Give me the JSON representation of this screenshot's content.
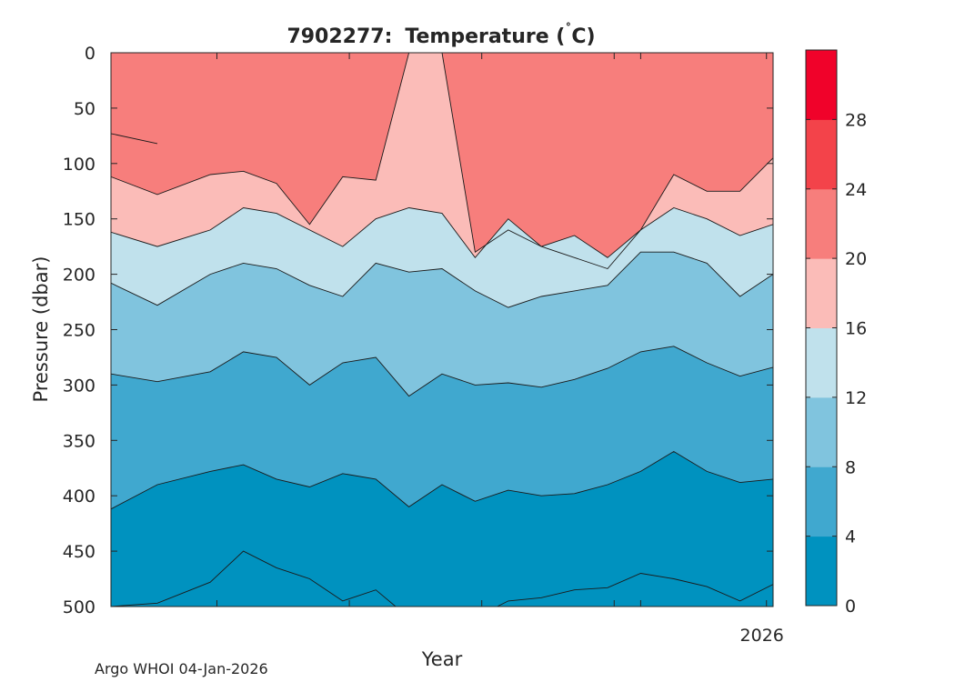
{
  "chart_data": {
    "type": "contour",
    "title_id": "7902277:",
    "title_var": "Temperature (",
    "title_degree": "˚",
    "title_unit": "C)",
    "xlabel": "Year",
    "ylabel": "Pressure (dbar)",
    "ylim": [
      0,
      500
    ],
    "y_ticks": [
      0,
      50,
      100,
      150,
      200,
      250,
      300,
      350,
      400,
      450,
      500
    ],
    "x_ticks": [
      "",
      "",
      "",
      "",
      "",
      "2026"
    ],
    "colorbar": {
      "levels": [
        0,
        4,
        8,
        12,
        16,
        20,
        24,
        28,
        32
      ],
      "tick_labels": [
        "0",
        "4",
        "8",
        "12",
        "16",
        "20",
        "24",
        "28"
      ],
      "colors": [
        "#0092bf",
        "#40a8cf",
        "#80c4de",
        "#c0e1ec",
        "#fbbcb8",
        "#f77e7c",
        "#f3434a",
        "#f0022a"
      ]
    },
    "x_profile_fraction": [
      0.0,
      0.07,
      0.15,
      0.2,
      0.25,
      0.3,
      0.35,
      0.4,
      0.45,
      0.5,
      0.55,
      0.6,
      0.65,
      0.7,
      0.75,
      0.8,
      0.85,
      0.9,
      0.95,
      1.0
    ],
    "isotherms_dbar": [
      {
        "level": 24,
        "depth": [
          73,
          82,
          null,
          null,
          null,
          null,
          null,
          null,
          null,
          null,
          null,
          null,
          null,
          null,
          null,
          null,
          null,
          null,
          null,
          null
        ]
      },
      {
        "level": 20,
        "depth": [
          112,
          128,
          110,
          107,
          118,
          155,
          112,
          115,
          0,
          0,
          180,
          160,
          175,
          185,
          195,
          160,
          110,
          125,
          125,
          95
        ]
      },
      {
        "level": 16,
        "depth": [
          162,
          175,
          160,
          140,
          145,
          160,
          175,
          150,
          140,
          145,
          185,
          150,
          175,
          165,
          185,
          160,
          140,
          150,
          165,
          155
        ]
      },
      {
        "level": 12,
        "depth": [
          208,
          228,
          200,
          190,
          195,
          210,
          220,
          190,
          198,
          195,
          215,
          230,
          220,
          215,
          210,
          180,
          180,
          190,
          220,
          200
        ]
      },
      {
        "level": 8,
        "depth": [
          290,
          297,
          288,
          270,
          275,
          300,
          280,
          275,
          310,
          290,
          300,
          298,
          302,
          295,
          285,
          270,
          265,
          280,
          292,
          284
        ]
      },
      {
        "level": 4,
        "depth": [
          412,
          390,
          378,
          372,
          385,
          392,
          380,
          385,
          410,
          390,
          405,
          395,
          400,
          398,
          390,
          378,
          360,
          378,
          388,
          385
        ]
      },
      {
        "level": 0,
        "depth": [
          500,
          497,
          478,
          450,
          465,
          475,
          495,
          485,
          510,
          500,
          510,
          495,
          492,
          485,
          483,
          470,
          475,
          482,
          495,
          480
        ]
      }
    ],
    "footer": "Argo WHOI 04-Jan-2026"
  }
}
